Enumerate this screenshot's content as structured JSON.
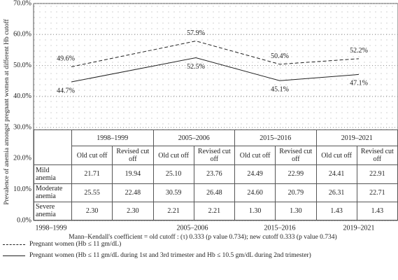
{
  "chart_data": {
    "type": "line",
    "y_label": "Prevalence of anemia amongst pregnant women at different Hb cutoff",
    "categories": [
      "1998–1999",
      "2005–2006",
      "2015–2016",
      "2019–2021"
    ],
    "series": [
      {
        "name": "Pregnant women (Hb ≤ 11 gm/dL)",
        "color": "#222222",
        "dash": true,
        "values": [
          49.6,
          57.9,
          50.4,
          52.2
        ],
        "value_labels": [
          "49.6%",
          "57.9%",
          "50.4%",
          "52.2%"
        ]
      },
      {
        "name": "Pregnant women (Hb ≤ 11 gm/dL during 1st and 3rd trimester and Hb ≤ 10.5 gm/dL during 2nd trimester)",
        "color": "#222222",
        "dash": false,
        "values": [
          44.7,
          52.5,
          45.1,
          47.1
        ],
        "value_labels": [
          "44.7%",
          "52.5%",
          "45.1%",
          "47.1%"
        ]
      }
    ],
    "ylim": [
      0,
      70
    ],
    "yticks": [
      {
        "value": 0,
        "label": "0.0%"
      },
      {
        "value": 10,
        "label": "10.0%"
      },
      {
        "value": 20,
        "label": "20.0%"
      },
      {
        "value": 30,
        "label": "30.0%"
      },
      {
        "value": 40,
        "label": "40.0%"
      },
      {
        "value": 50,
        "label": "50.0%"
      },
      {
        "value": 60,
        "label": "60.0%"
      },
      {
        "value": 70,
        "label": "70.0%"
      }
    ],
    "grid": true,
    "annotation": "Mann–Kendall's coefficient = old cutoff : (τ) 0.333 (p value 0.734); new cutoff 0.333 (p value 0.734)",
    "table": {
      "subheaders": [
        "Old cut off",
        "Revised cut off"
      ],
      "rows": [
        {
          "label": "Mild anemia",
          "values": [
            "21.71",
            "19.94",
            "25.10",
            "23.76",
            "24.49",
            "22.99",
            "24.41",
            "22.91"
          ]
        },
        {
          "label": "Moderate anemia",
          "values": [
            "25.55",
            "22.48",
            "30.59",
            "26.48",
            "24.60",
            "20.79",
            "26.31",
            "22.71"
          ]
        },
        {
          "label": "Severe anemia",
          "values": [
            "2.30",
            "2.30",
            "2.21",
            "2.21",
            "1.30",
            "1.30",
            "1.43",
            "1.43"
          ]
        }
      ]
    }
  }
}
